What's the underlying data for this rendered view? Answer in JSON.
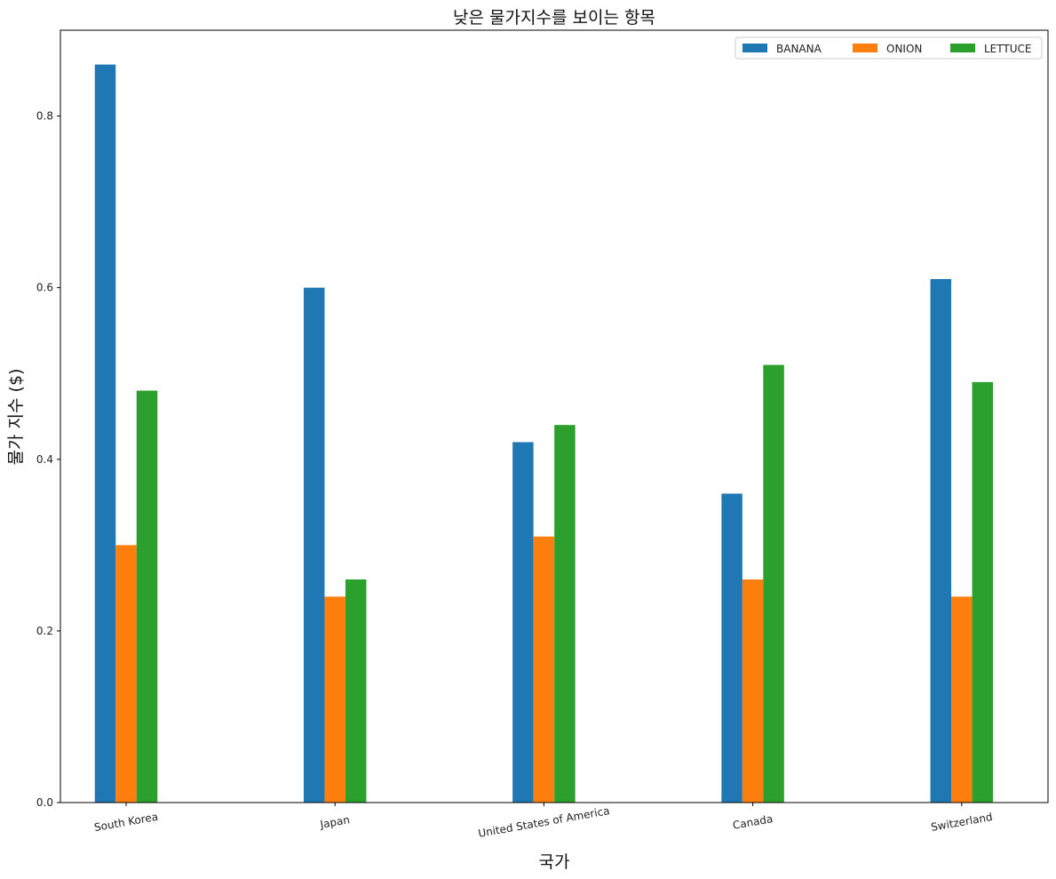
{
  "chart_data": {
    "type": "bar",
    "title": "낮은 물가지수를 보이는 항목",
    "xlabel": "국가",
    "ylabel": "물가 지수 ($)",
    "categories": [
      "South Korea",
      "Japan",
      "United States of America",
      "Canada",
      "Switzerland"
    ],
    "series": [
      {
        "name": "BANANA",
        "color": "#1f77b4",
        "values": [
          0.86,
          0.6,
          0.42,
          0.36,
          0.61
        ]
      },
      {
        "name": "ONION",
        "color": "#ff7f0e",
        "values": [
          0.3,
          0.24,
          0.31,
          0.26,
          0.24
        ]
      },
      {
        "name": "LETTUCE",
        "color": "#2ca02c",
        "values": [
          0.48,
          0.26,
          0.44,
          0.51,
          0.49
        ]
      }
    ],
    "ylim": [
      0,
      0.9
    ],
    "yticks": [
      "0.0",
      "0.2",
      "0.4",
      "0.6",
      "0.8"
    ],
    "grid": false,
    "legend_position": "top-right",
    "legend_columns": 3
  }
}
